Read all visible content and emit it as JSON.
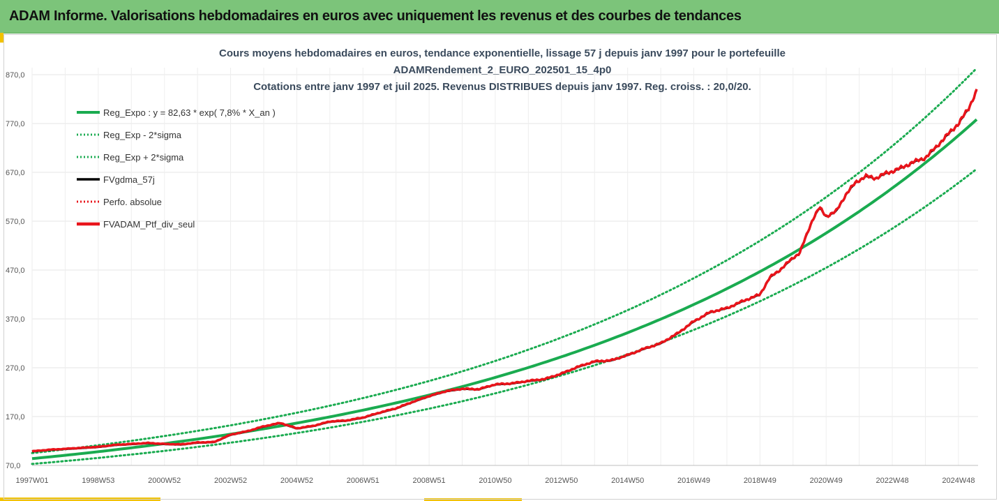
{
  "banner": {
    "title": "ADAM Informe. Valorisations hebdomadaires en euros avec uniquement les revenus et des courbes de tendances"
  },
  "colors": {
    "banner_bg": "#7cc47a",
    "accent": "#f2c200",
    "trend_green": "#1aab50",
    "series_black": "#000000",
    "series_red": "#e8141b",
    "grid": "#e6e6e6"
  },
  "chart_data": {
    "type": "line",
    "title_lines": [
      "Cours moyens hebdomadaires  en euros, tendance exponentielle, lissage 57 j depuis janv 1997 pour le portefeuille",
      "ADAMRendement_2_EURO_202501_15_4p0",
      "Cotations entre janv 1997 et juil 2025. Revenus DISTRIBUES depuis janv 1997. Reg. croiss. : 20,0/20."
    ],
    "xlabel": "",
    "ylabel": "",
    "x_range": [
      1997.0,
      2025.55
    ],
    "ylim": [
      70,
      890
    ],
    "y_ticks": [
      "70,0",
      "170,0",
      "270,0",
      "370,0",
      "470,0",
      "570,0",
      "670,0",
      "770,0",
      "870,0"
    ],
    "x_ticks": [
      {
        "label": "1997W01",
        "t": 1997.0
      },
      {
        "label": "1998W53",
        "t": 1999.0
      },
      {
        "label": "2000W52",
        "t": 2001.0
      },
      {
        "label": "2002W52",
        "t": 2003.0
      },
      {
        "label": "2004W52",
        "t": 2005.0
      },
      {
        "label": "2006W51",
        "t": 2007.0
      },
      {
        "label": "2008W51",
        "t": 2009.0
      },
      {
        "label": "2010W50",
        "t": 2011.0
      },
      {
        "label": "2012W50",
        "t": 2013.0
      },
      {
        "label": "2014W50",
        "t": 2015.0
      },
      {
        "label": "2016W49",
        "t": 2017.0
      },
      {
        "label": "2018W49",
        "t": 2019.0
      },
      {
        "label": "2020W49",
        "t": 2021.0
      },
      {
        "label": "2022W48",
        "t": 2023.0
      },
      {
        "label": "2024W48",
        "t": 2025.0
      }
    ],
    "grid": true,
    "legend_position": "top-left",
    "trend": {
      "a": 82.63,
      "rate": 0.078,
      "sigma_factor_low": 0.87,
      "sigma_factor_high": 1.135
    },
    "series": [
      {
        "name": "Reg_Expo : y = 82,63 * exp( 7,8% *  X_an )",
        "kind": "trend",
        "style": "solid",
        "color": "#1aab50"
      },
      {
        "name": "Reg_Exp - 2*sigma",
        "kind": "trend_low",
        "style": "dotted",
        "color": "#1aab50"
      },
      {
        "name": "Reg_Exp + 2*sigma",
        "kind": "trend_high",
        "style": "dotted",
        "color": "#1aab50"
      },
      {
        "name": "FVgdma_57j",
        "kind": "data",
        "style": "solid",
        "color": "#000000"
      },
      {
        "name": "Perfo. absolue",
        "kind": "data",
        "style": "dotted",
        "color": "#e8141b"
      },
      {
        "name": "FVADAM_Ptf_div_seul",
        "kind": "data",
        "style": "solid",
        "color": "#e8141b"
      }
    ],
    "portfolio": {
      "x": [
        1997.0,
        1997.5,
        1998.0,
        1998.5,
        1999.0,
        1999.5,
        2000.0,
        2000.5,
        2001.0,
        2001.5,
        2002.0,
        2002.5,
        2003.0,
        2003.5,
        2004.0,
        2004.5,
        2005.0,
        2005.5,
        2006.0,
        2006.5,
        2007.0,
        2007.5,
        2008.0,
        2008.5,
        2009.0,
        2009.5,
        2010.0,
        2010.5,
        2011.0,
        2011.5,
        2012.0,
        2012.5,
        2013.0,
        2013.5,
        2014.0,
        2014.5,
        2015.0,
        2015.5,
        2016.0,
        2016.5,
        2017.0,
        2017.5,
        2018.0,
        2018.5,
        2019.0,
        2019.3,
        2019.6,
        2020.0,
        2020.2,
        2020.4,
        2020.6,
        2020.8,
        2021.0,
        2021.3,
        2021.6,
        2021.9,
        2022.2,
        2022.5,
        2022.8,
        2023.0,
        2023.3,
        2023.6,
        2024.0,
        2024.3,
        2024.6,
        2025.0,
        2025.3,
        2025.55
      ],
      "y": [
        99,
        102,
        104,
        106,
        108,
        112,
        114,
        116,
        114,
        113,
        117,
        118,
        133,
        140,
        150,
        157,
        146,
        151,
        160,
        162,
        168,
        178,
        187,
        200,
        212,
        222,
        227,
        226,
        236,
        238,
        243,
        247,
        258,
        272,
        283,
        285,
        296,
        309,
        320,
        340,
        365,
        384,
        392,
        407,
        420,
        455,
        470,
        495,
        505,
        540,
        575,
        598,
        580,
        590,
        625,
        650,
        662,
        658,
        668,
        672,
        680,
        690,
        700,
        720,
        742,
        770,
        800,
        838
      ]
    }
  }
}
